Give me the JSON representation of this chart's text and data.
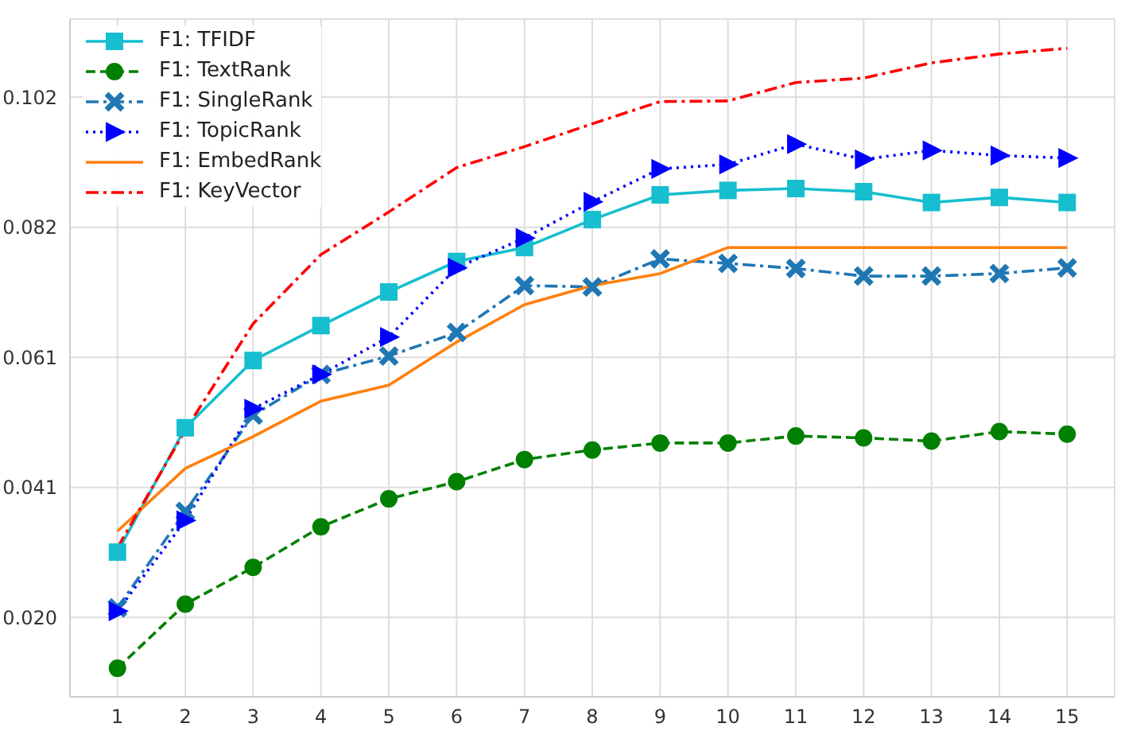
{
  "chart_data": {
    "type": "line",
    "x": [
      1,
      2,
      3,
      4,
      5,
      6,
      7,
      8,
      9,
      10,
      11,
      12,
      13,
      14,
      15
    ],
    "xlim": [
      0.3,
      15.7
    ],
    "xticks": [
      1,
      2,
      3,
      4,
      5,
      6,
      7,
      8,
      9,
      10,
      11,
      12,
      13,
      14,
      15
    ],
    "ylim": [
      0.008,
      0.1148
    ],
    "yticks": [
      {
        "value": 0.0205,
        "label": "0.020"
      },
      {
        "value": 0.041,
        "label": "0.041"
      },
      {
        "value": 0.0615,
        "label": "0.061"
      },
      {
        "value": 0.082,
        "label": "0.082"
      },
      {
        "value": 0.1025,
        "label": "0.102"
      }
    ],
    "grid": true,
    "legend": "top left",
    "series": [
      {
        "name": "F1: TFIDF",
        "color": "#17becf",
        "marker": "square",
        "line_style": "solid",
        "values": [
          0.0308,
          0.0504,
          0.061,
          0.0665,
          0.0718,
          0.0766,
          0.0788,
          0.0832,
          0.0871,
          0.0878,
          0.0881,
          0.0876,
          0.0859,
          0.0867,
          0.0859
        ]
      },
      {
        "name": "F1: TextRank",
        "color": "#008000",
        "marker": "circle",
        "line_style": "dashed",
        "values": [
          0.0125,
          0.0226,
          0.0284,
          0.0348,
          0.0392,
          0.0419,
          0.0454,
          0.0469,
          0.048,
          0.048,
          0.0491,
          0.0488,
          0.0483,
          0.0498,
          0.0494
        ]
      },
      {
        "name": "F1: SingleRank",
        "color": "#1f77b4",
        "marker": "cross",
        "line_style": "dashdot",
        "values": [
          0.022,
          0.0372,
          0.0524,
          0.0588,
          0.0617,
          0.0654,
          0.0728,
          0.0726,
          0.077,
          0.0763,
          0.0755,
          0.0743,
          0.0743,
          0.0747,
          0.0756
        ]
      },
      {
        "name": "F1: TopicRank",
        "color": "#0000ff",
        "marker": "triangle",
        "line_style": "dotted",
        "values": [
          0.0215,
          0.0358,
          0.0534,
          0.0588,
          0.0647,
          0.0756,
          0.0803,
          0.086,
          0.0912,
          0.0919,
          0.0951,
          0.0927,
          0.0941,
          0.0933,
          0.0929
        ]
      },
      {
        "name": "F1: EmbedRank",
        "color": "#ff7f0e",
        "marker": "none",
        "line_style": "solid",
        "values": [
          0.0341,
          0.044,
          0.049,
          0.0546,
          0.0571,
          0.0639,
          0.0698,
          0.0728,
          0.0747,
          0.0788,
          0.0788,
          0.0788,
          0.0788,
          0.0788,
          0.0788
        ]
      },
      {
        "name": "F1: KeyVector",
        "color": "#ff0000",
        "marker": "none",
        "line_style": "dashdot",
        "values": [
          0.0315,
          0.05,
          0.0668,
          0.0777,
          0.0844,
          0.0914,
          0.0947,
          0.0983,
          0.1018,
          0.1019,
          0.1048,
          0.1055,
          0.1079,
          0.1093,
          0.1102
        ]
      }
    ]
  }
}
